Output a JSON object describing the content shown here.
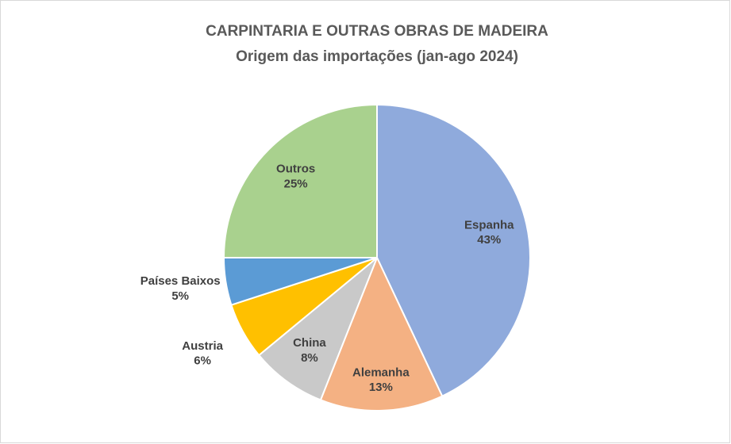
{
  "chart_data": {
    "type": "pie",
    "title": "CARPINTARIA E OUTRAS OBRAS DE MADEIRA",
    "subtitle": "Origem das importações (jan-ago 2024)",
    "categories": [
      "Espanha",
      "Alemanha",
      "China",
      "Austria",
      "Países Baixos",
      "Outros"
    ],
    "values": [
      43,
      13,
      8,
      6,
      5,
      25
    ],
    "value_labels": [
      "43%",
      "13%",
      "8%",
      "6%",
      "5%",
      "25%"
    ],
    "colors": [
      "#8faadc",
      "#f4b183",
      "#c9c9c9",
      "#ffc000",
      "#5b9bd5",
      "#a9d18e"
    ]
  }
}
